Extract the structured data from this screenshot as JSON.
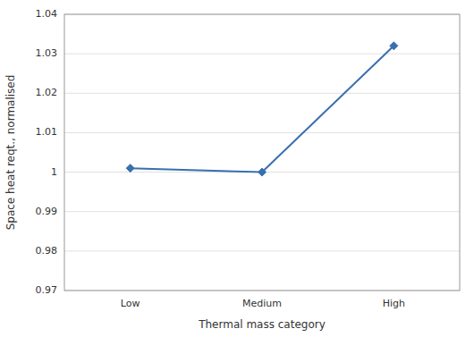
{
  "chart_data": {
    "type": "line",
    "xlabel": "Thermal mass category",
    "ylabel": "Space heat reqt., normalised",
    "categories": [
      "Low",
      "Medium",
      "High"
    ],
    "values": [
      1.001,
      1.0,
      1.032
    ],
    "color": "#3A6FAF",
    "marker": "diamond",
    "ylim": [
      0.97,
      1.04
    ],
    "yticks": [
      0.97,
      0.98,
      0.99,
      1,
      1.01,
      1.02,
      1.03,
      1.04
    ],
    "grid": true
  }
}
